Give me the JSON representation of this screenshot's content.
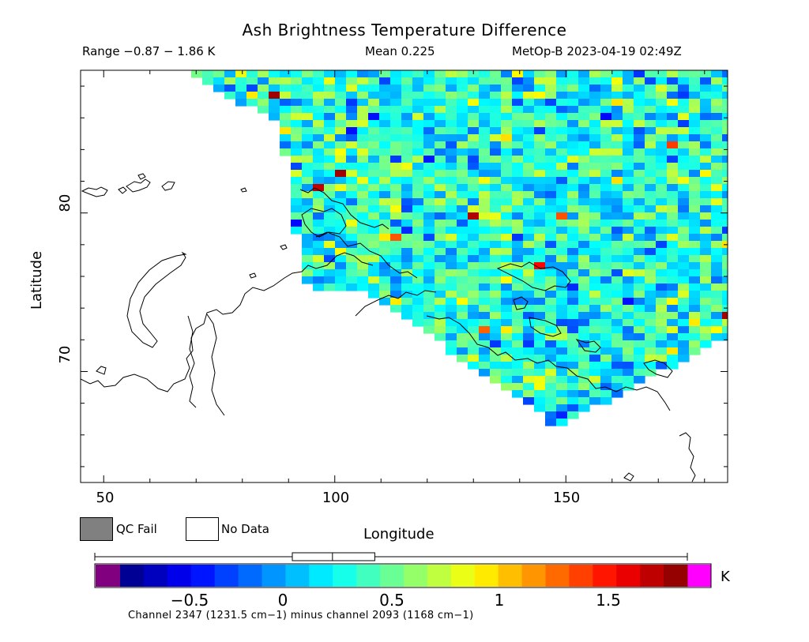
{
  "header": {
    "title": "Ash Brightness Temperature Difference",
    "range": "Range −0.87 − 1.86 K",
    "mean": "Mean 0.225",
    "satellite": "MetOp-B 2023-04-19 02:49Z"
  },
  "axes": {
    "xlabel": "Longitude",
    "ylabel": "Latitude",
    "xticks": [
      "50",
      "100",
      "150"
    ],
    "yticks": [
      "70",
      "80"
    ],
    "lon_range": [
      45,
      185
    ],
    "lat_range": [
      63,
      89
    ]
  },
  "legend": {
    "qc_fail": "QC Fail",
    "no_data": "No Data",
    "qc_color": "#808080",
    "no_data_color": "#ffffff"
  },
  "colorbar": {
    "unit": "K",
    "ticks": [
      "−0.5",
      "0",
      "0.5",
      "1",
      "1.5"
    ],
    "tick_values": [
      -0.5,
      0,
      0.5,
      1,
      1.5
    ],
    "min": -0.87,
    "max": 1.86,
    "under_color": "#800080",
    "over_color": "#ff00ff",
    "boxplot": {
      "min": -0.87,
      "q1": 0.04,
      "median": 0.225,
      "q3": 0.42,
      "max": 1.86
    }
  },
  "footnote": "Channel 2347 (1231.5 cm−1) minus channel 2093 (1168 cm−1)"
}
